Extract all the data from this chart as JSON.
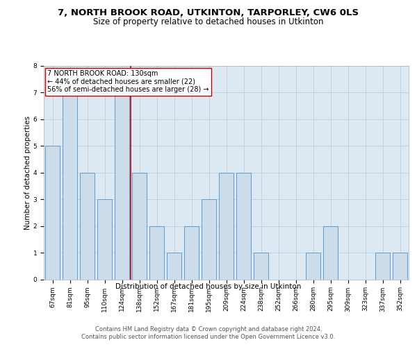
{
  "title1": "7, NORTH BROOK ROAD, UTKINTON, TARPORLEY, CW6 0LS",
  "title2": "Size of property relative to detached houses in Utkinton",
  "xlabel": "Distribution of detached houses by size in Utkinton",
  "ylabel": "Number of detached properties",
  "categories": [
    "67sqm",
    "81sqm",
    "95sqm",
    "110sqm",
    "124sqm",
    "138sqm",
    "152sqm",
    "167sqm",
    "181sqm",
    "195sqm",
    "209sqm",
    "224sqm",
    "238sqm",
    "252sqm",
    "266sqm",
    "280sqm",
    "295sqm",
    "309sqm",
    "323sqm",
    "337sqm",
    "352sqm"
  ],
  "values": [
    5,
    7,
    4,
    3,
    7,
    4,
    2,
    1,
    2,
    3,
    4,
    4,
    1,
    0,
    0,
    1,
    2,
    0,
    0,
    1,
    1
  ],
  "bar_color": "#ccdce8",
  "bar_edge_color": "#5b9bd5",
  "marker_color": "#c00000",
  "annotation_text": "7 NORTH BROOK ROAD: 130sqm\n← 44% of detached houses are smaller (22)\n56% of semi-detached houses are larger (28) →",
  "annotation_box_color": "#ffffff",
  "annotation_box_edge_color": "#c00000",
  "ylim": [
    0,
    8
  ],
  "yticks": [
    0,
    1,
    2,
    3,
    4,
    5,
    6,
    7,
    8
  ],
  "footer1": "Contains HM Land Registry data © Crown copyright and database right 2024.",
  "footer2": "Contains public sector information licensed under the Open Government Licence v3.0.",
  "plot_bg_color": "#dce9f3",
  "title1_fontsize": 9.5,
  "title2_fontsize": 8.5,
  "axis_label_fontsize": 7.5,
  "tick_fontsize": 6.5,
  "annotation_fontsize": 7,
  "footer_fontsize": 6
}
